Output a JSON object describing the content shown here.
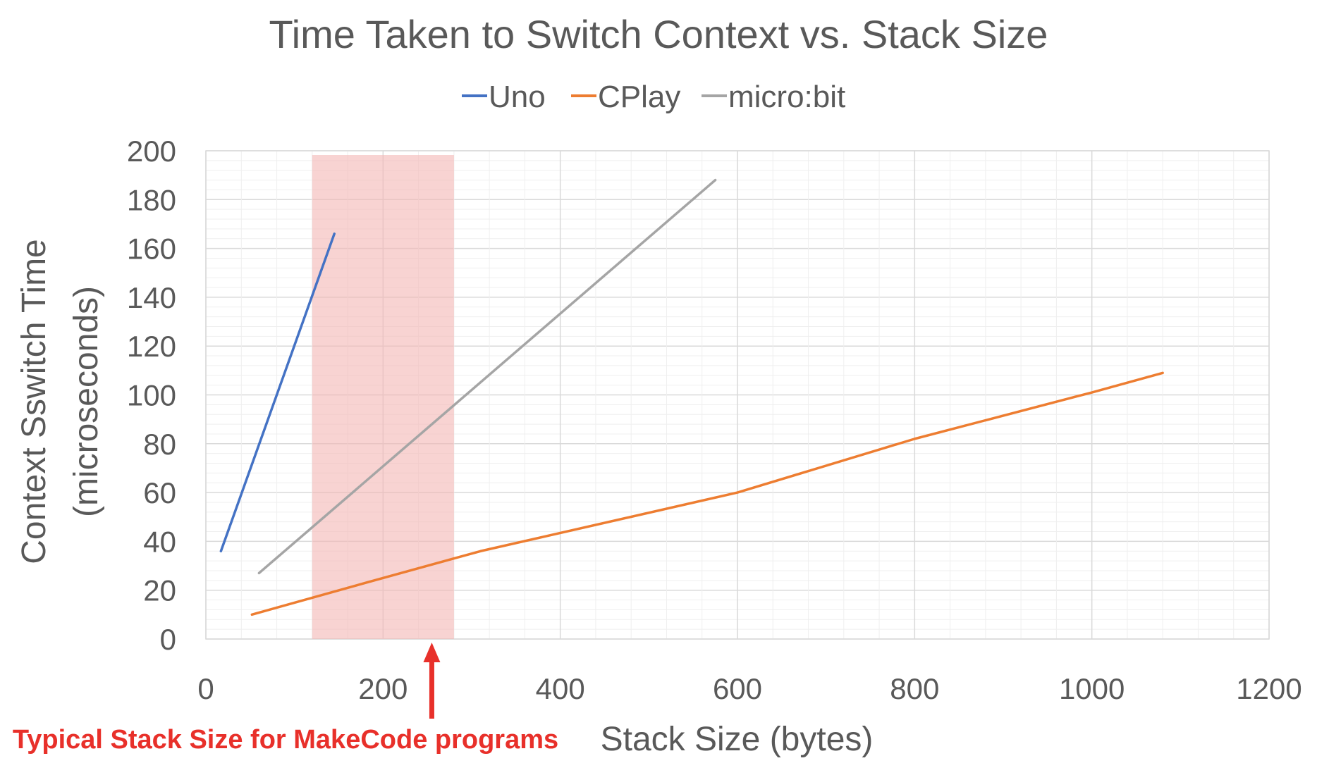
{
  "chart_data": {
    "type": "line",
    "title": "Time Taken to Switch Context vs. Stack Size",
    "xlabel": "Stack Size (bytes)",
    "ylabel_line1": "Context Sswitch Time",
    "ylabel_line2": "(microseconds)",
    "xlim": [
      0,
      1200
    ],
    "ylim": [
      0,
      200
    ],
    "x_ticks": [
      "0",
      "200",
      "400",
      "600",
      "800",
      "1000",
      "1200"
    ],
    "y_ticks": [
      "0",
      "20",
      "40",
      "60",
      "80",
      "100",
      "120",
      "140",
      "160",
      "180",
      "200"
    ],
    "grid": true,
    "legend_position": "top",
    "series": [
      {
        "name": "Uno",
        "color": "#4472c4",
        "x": [
          17,
          145
        ],
        "y": [
          36,
          166
        ]
      },
      {
        "name": "CPlay",
        "color": "#ed7d31",
        "x": [
          52,
          180,
          310,
          600,
          800,
          1000,
          1080
        ],
        "y": [
          10,
          23,
          36,
          60,
          82,
          101,
          109
        ]
      },
      {
        "name": "micro:bit",
        "color": "#a5a5a5",
        "x": [
          60,
          575
        ],
        "y": [
          27,
          188
        ]
      }
    ],
    "highlight_region": {
      "x_range": [
        120,
        280
      ],
      "color": "#f4b6b4"
    },
    "annotation": {
      "text": "Typical Stack Size for MakeCode programs",
      "x": 255,
      "color": "#e8302a"
    }
  }
}
